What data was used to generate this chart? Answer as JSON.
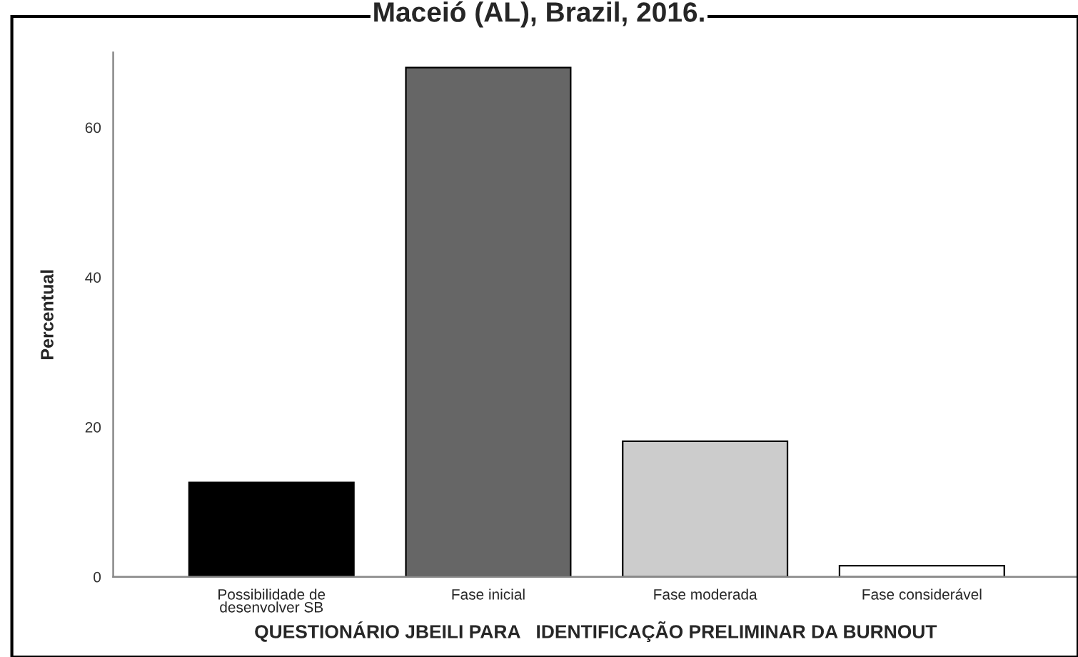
{
  "chart_data": {
    "type": "bar",
    "title": "Maceió (AL), Brazil, 2016.",
    "categories": [
      "Possibilidade de\ndesenvolver SB",
      "Fase inicial",
      "Fase moderada",
      "Fase considerável"
    ],
    "values": [
      12.6,
      68.0,
      18.1,
      1.5
    ],
    "colors": [
      "#000000",
      "#666666",
      "#cccccc",
      "#ffffff"
    ],
    "xlabel": "QUESTIONÁRIO JBEILI PARA   IDENTIFICAÇÃO PRELIMINAR DA BURNOUT",
    "ylabel": "Percentual",
    "ylim": [
      0,
      70
    ],
    "yticks": [
      0,
      20,
      40,
      60
    ],
    "grid": false,
    "legend": false
  }
}
